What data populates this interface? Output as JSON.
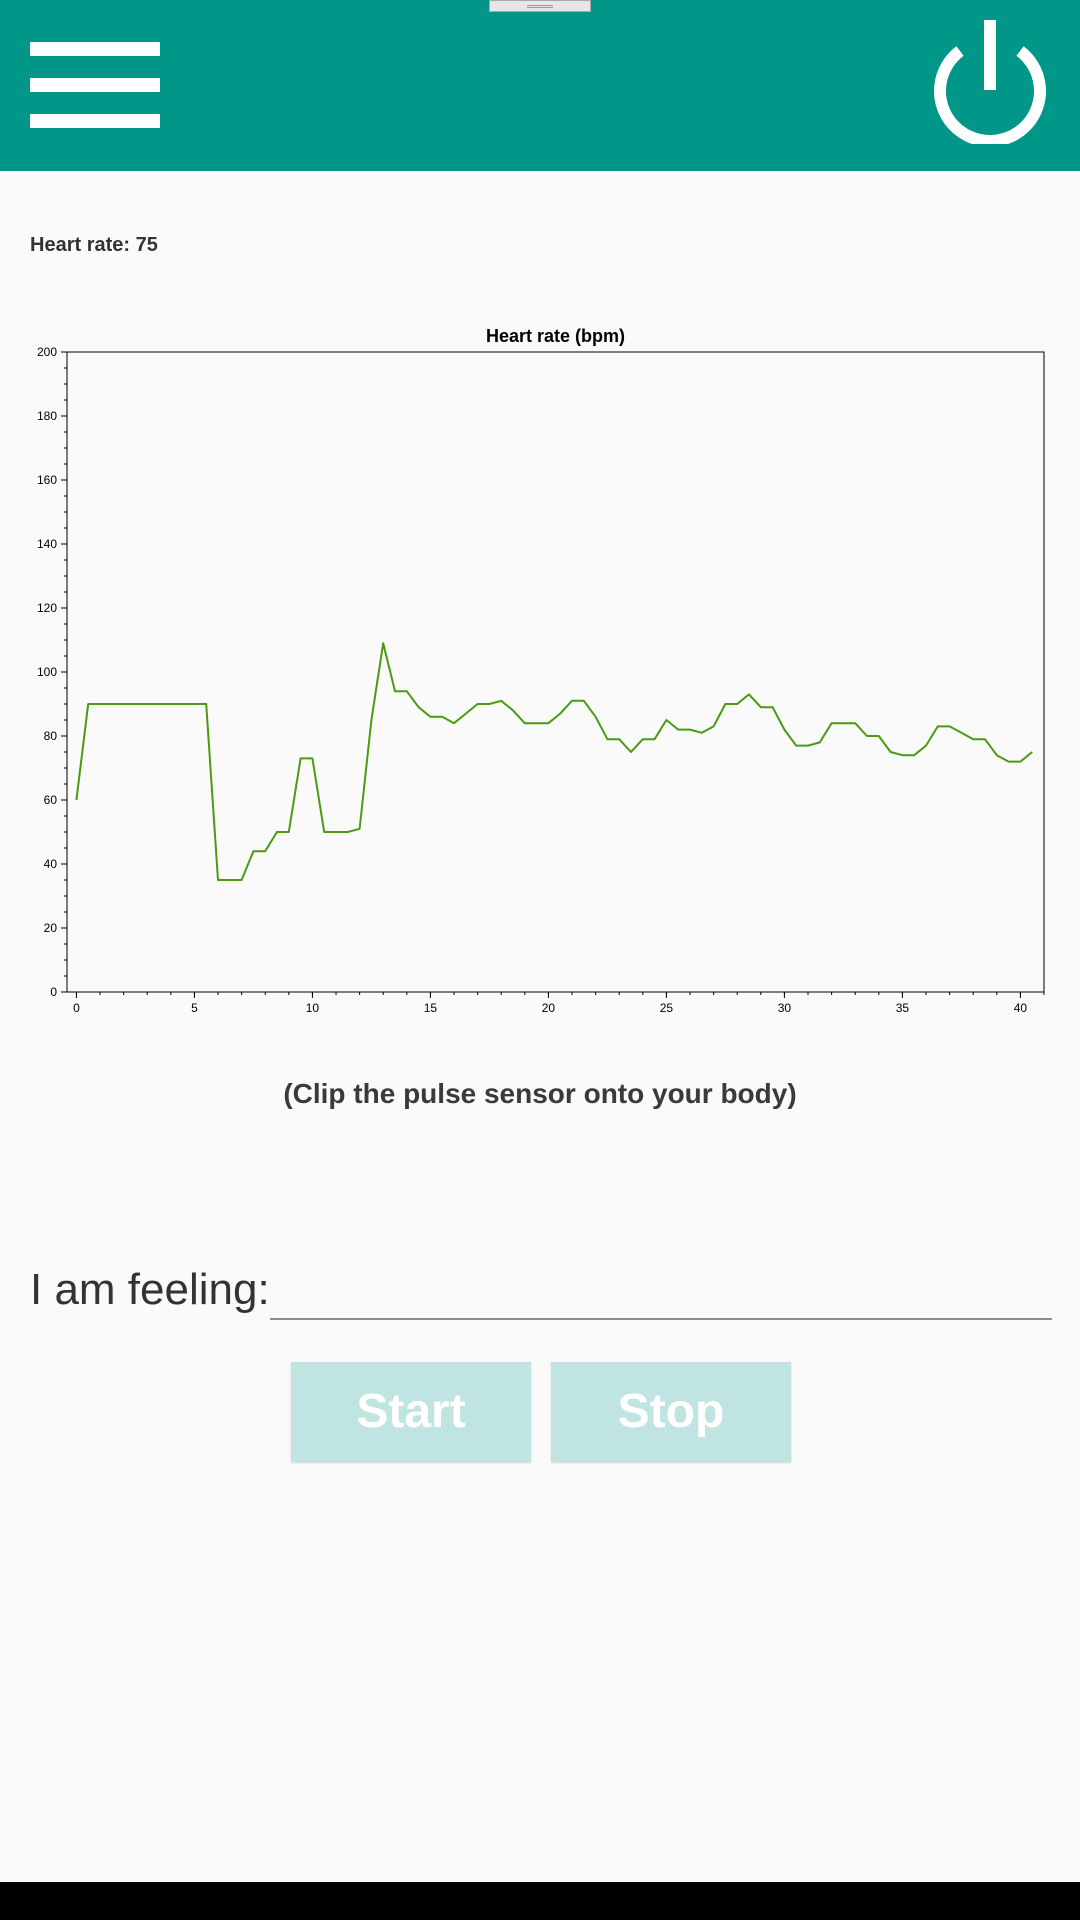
{
  "app_bar": {
    "menu_icon": "hamburger-menu-icon",
    "power_icon": "power-icon",
    "color": "#009688"
  },
  "heart_rate": {
    "label": "Heart rate:",
    "value": "75"
  },
  "chart_data": {
    "type": "line",
    "title": "Heart rate (bpm)",
    "xlabel": "",
    "ylabel": "",
    "xlim": [
      -0.4,
      41
    ],
    "ylim": [
      0,
      200
    ],
    "x_ticks": [
      0,
      5,
      10,
      15,
      20,
      25,
      30,
      35,
      40
    ],
    "y_ticks": [
      0,
      20,
      40,
      60,
      80,
      100,
      120,
      140,
      160,
      180,
      200
    ],
    "grid": false,
    "line_color": "#4a9a12",
    "series": [
      {
        "x": [
          0,
          0.5,
          1,
          2,
          3,
          4,
          5,
          5.5,
          6,
          6.5,
          7,
          7.5,
          8,
          8.5,
          9,
          9.5,
          10,
          10.5,
          11,
          11.5,
          12,
          12.5,
          13,
          13.5,
          14,
          14.5,
          15,
          15.5,
          16,
          16.5,
          17,
          17.5,
          18,
          18.5,
          19,
          19.5,
          20,
          20.5,
          21,
          21.5,
          22,
          22.5,
          23,
          23.5,
          24,
          24.5,
          25,
          25.5,
          26,
          26.5,
          27,
          27.5,
          28,
          28.5,
          29,
          29.5,
          30,
          30.5,
          31,
          31.5,
          32,
          32.5,
          33,
          33.5,
          34,
          34.5,
          35,
          35.5,
          36,
          36.5,
          37,
          37.5,
          38,
          38.5,
          39,
          39.5,
          40,
          40.5
        ],
        "y": [
          60,
          90,
          90,
          90,
          90,
          90,
          90,
          90,
          35,
          35,
          35,
          44,
          44,
          50,
          50,
          73,
          73,
          50,
          50,
          50,
          51,
          85,
          109,
          94,
          94,
          89,
          86,
          86,
          84,
          87,
          90,
          90,
          91,
          88,
          84,
          84,
          84,
          87,
          91,
          91,
          86,
          79,
          79,
          75,
          79,
          79,
          85,
          82,
          82,
          81,
          83,
          90,
          90,
          93,
          89,
          89,
          82,
          77,
          77,
          78,
          84,
          84,
          84,
          80,
          80,
          75,
          74,
          74,
          77,
          83,
          83,
          81,
          79,
          79,
          74,
          72,
          72,
          75
        ]
      }
    ]
  },
  "hint": "(Clip the pulse sensor onto your body)",
  "feeling": {
    "label": "I am feeling:",
    "value": ""
  },
  "buttons": {
    "start": "Start",
    "stop": "Stop"
  }
}
